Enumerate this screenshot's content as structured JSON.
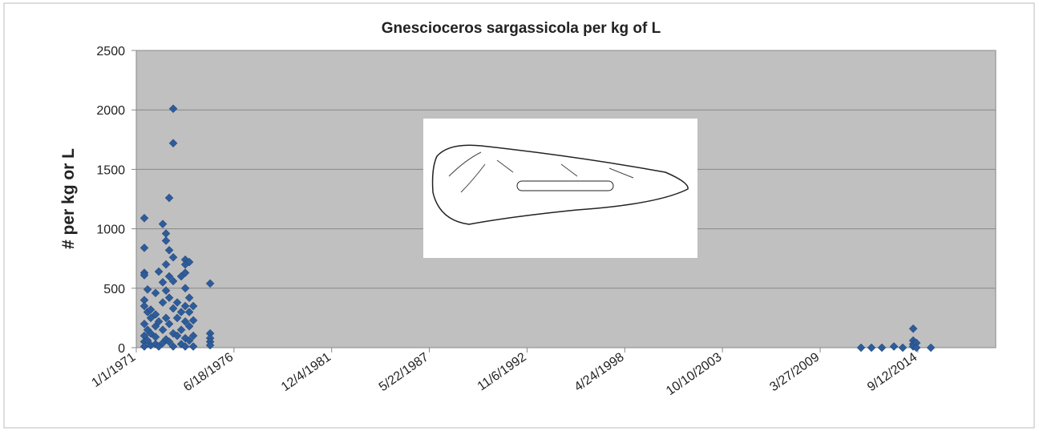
{
  "chart_data": {
    "type": "scatter",
    "title": "Gnescioceros sargassicola per kg of L",
    "y_label": "# per kg or L",
    "xlim": [
      25934,
      43484
    ],
    "xticks": [
      {
        "value": 25934,
        "label": "1/1/1971"
      },
      {
        "value": 27929,
        "label": "6/18/1976"
      },
      {
        "value": 29924,
        "label": "12/4/1981"
      },
      {
        "value": 31919,
        "label": "5/22/1987"
      },
      {
        "value": 33914,
        "label": "11/6/1992"
      },
      {
        "value": 35909,
        "label": "4/24/1998"
      },
      {
        "value": 37904,
        "label": "10/10/2003"
      },
      {
        "value": 39899,
        "label": "3/27/2009"
      },
      {
        "value": 41894,
        "label": "9/12/2014"
      }
    ],
    "ylim": [
      0,
      2500
    ],
    "yticks": [
      0,
      500,
      1000,
      1500,
      2000,
      2500
    ],
    "grid": true,
    "series": [
      {
        "color": "#2e5c9a",
        "x": [
          26098,
          26098,
          26098,
          26098,
          26098,
          26098,
          26098,
          26098,
          26098,
          26098,
          26164,
          26164,
          26164,
          26164,
          26229,
          26229,
          26229,
          26229,
          26327,
          26327,
          26327,
          26327,
          26327,
          26393,
          26393,
          26393,
          26475,
          26475,
          26475,
          26475,
          26475,
          26541,
          26541,
          26541,
          26541,
          26541,
          26541,
          26606,
          26606,
          26606,
          26606,
          26606,
          26606,
          26688,
          26688,
          26688,
          26688,
          26688,
          26688,
          26688,
          26770,
          26770,
          26770,
          26852,
          26852,
          26852,
          26852,
          26934,
          26934,
          26934,
          26934,
          26934,
          26934,
          26934,
          26934,
          27016,
          27016,
          27016,
          27016,
          27016,
          27098,
          27098,
          27098,
          27098,
          27442,
          27442,
          27442,
          27442,
          27442,
          40734,
          40947,
          41160,
          41406,
          41586,
          41799,
          41799,
          41799,
          41799,
          41865,
          41865,
          42160
        ],
        "values": [
          1090,
          840,
          630,
          610,
          400,
          350,
          200,
          100,
          50,
          10,
          490,
          300,
          150,
          60,
          320,
          250,
          120,
          20,
          460,
          280,
          180,
          90,
          30,
          640,
          220,
          10,
          1040,
          550,
          380,
          150,
          40,
          960,
          900,
          700,
          480,
          250,
          70,
          1260,
          820,
          600,
          420,
          200,
          50,
          2010,
          1720,
          760,
          560,
          330,
          120,
          10,
          380,
          250,
          100,
          600,
          300,
          150,
          30,
          740,
          700,
          630,
          500,
          350,
          220,
          80,
          10,
          720,
          420,
          300,
          180,
          60,
          350,
          230,
          100,
          10,
          540,
          120,
          80,
          50,
          20,
          0,
          0,
          0,
          10,
          0,
          160,
          60,
          30,
          10,
          40,
          0,
          0
        ]
      }
    ]
  }
}
